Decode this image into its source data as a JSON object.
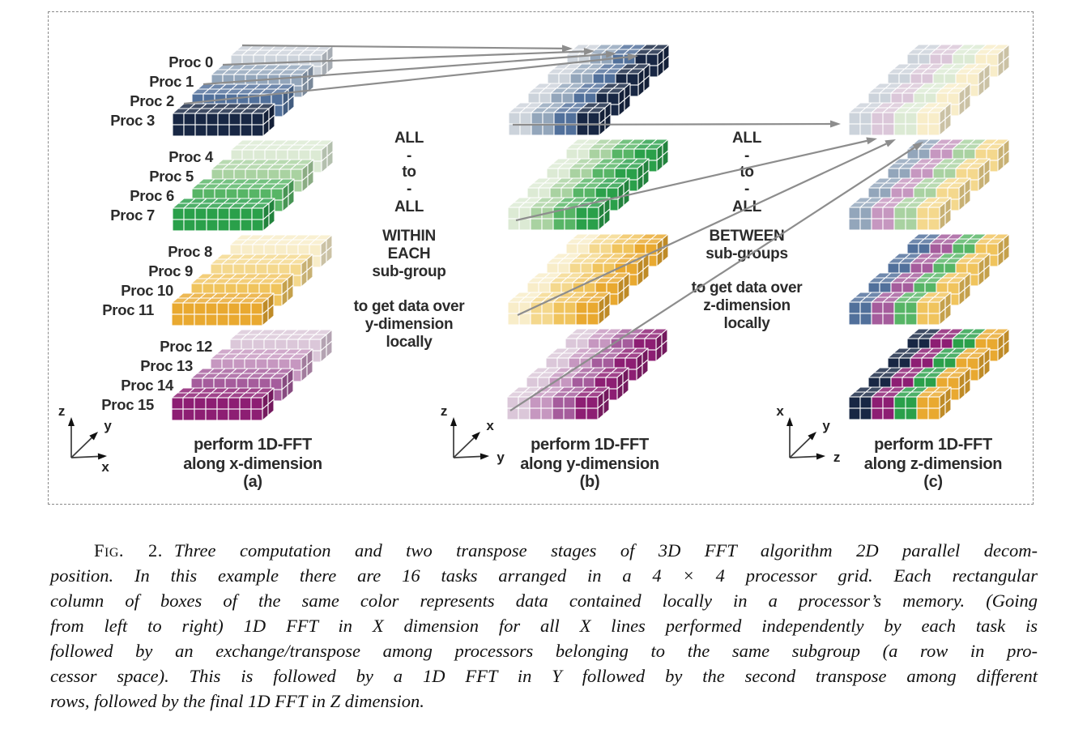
{
  "diagram": {
    "proc_labels": [
      "Proc 0",
      "Proc 1",
      "Proc 2",
      "Proc 3",
      "Proc 4",
      "Proc 5",
      "Proc 6",
      "Proc 7",
      "Proc 8",
      "Proc 9",
      "Proc 10",
      "Proc 11",
      "Proc 12",
      "Proc 13",
      "Proc 14",
      "Proc 15"
    ],
    "columns": [
      {
        "id": "a",
        "stage_label": [
          "perform 1D-FFT",
          "along x-dimension",
          "(a)"
        ],
        "axes": {
          "up": "z",
          "diag": "y",
          "right": "x"
        }
      },
      {
        "id": "b",
        "stage_label": [
          "perform 1D-FFT",
          "along y-dimension",
          "(b)"
        ],
        "axes": {
          "up": "z",
          "diag": "x",
          "right": "y"
        }
      },
      {
        "id": "c",
        "stage_label": [
          "perform 1D-FFT",
          "along z-dimension",
          "(c)"
        ],
        "axes": {
          "up": "x",
          "diag": "y",
          "right": "z"
        }
      }
    ],
    "transfer_labels": [
      {
        "exchange": [
          "ALL",
          "-",
          "to",
          "-",
          "ALL"
        ],
        "scope": [
          "WITHIN",
          "EACH",
          "sub-group"
        ],
        "purpose": [
          "to get data over",
          "y-dimension",
          "locally"
        ]
      },
      {
        "exchange": [
          "ALL",
          "-",
          "to",
          "-",
          "ALL"
        ],
        "scope": [
          "BETWEEN",
          "sub-groups"
        ],
        "purpose": [
          "to get data over",
          "z-dimension",
          "locally"
        ]
      }
    ],
    "palettes": {
      "blue": [
        "#ccd3db",
        "#93a6bb",
        "#51709b",
        "#182744"
      ],
      "green": [
        "#dcead4",
        "#a9d2a1",
        "#57b566",
        "#2aa04a"
      ],
      "yellow": [
        "#f8edc9",
        "#f4d88d",
        "#f0c45d",
        "#e9a930"
      ],
      "magenta": [
        "#dbc7d9",
        "#c697c0",
        "#a55c9c",
        "#8d1e73"
      ]
    },
    "group_hues": [
      "blue",
      "green",
      "yellow",
      "magenta"
    ],
    "segment_hues_stage_c": [
      "blue",
      "magenta",
      "green",
      "yellow"
    ],
    "arrow_color": "#8d8d8d",
    "axis_color": "#3a3a3a",
    "label_color": "#2b2b2b"
  },
  "caption": {
    "tag": "Fig. 2.",
    "lines": [
      "Three computation and two transpose stages of 3D FFT algorithm 2D parallel decom-",
      "position.  In this example there are 16 tasks arranged in a 4 × 4 processor grid.  Each rectangular",
      "column of boxes of the same color represents data contained locally in a processor’s memory.  (Going",
      "from left to right) 1D FFT in X dimension for all X lines performed independently by each task is",
      "followed by an exchange/transpose among processors belonging to the same subgroup (a row in pro-",
      "cessor space).  This is followed by a 1D FFT in Y followed by the second transpose among different",
      "rows, followed by the final 1D FFT in Z dimension."
    ]
  }
}
